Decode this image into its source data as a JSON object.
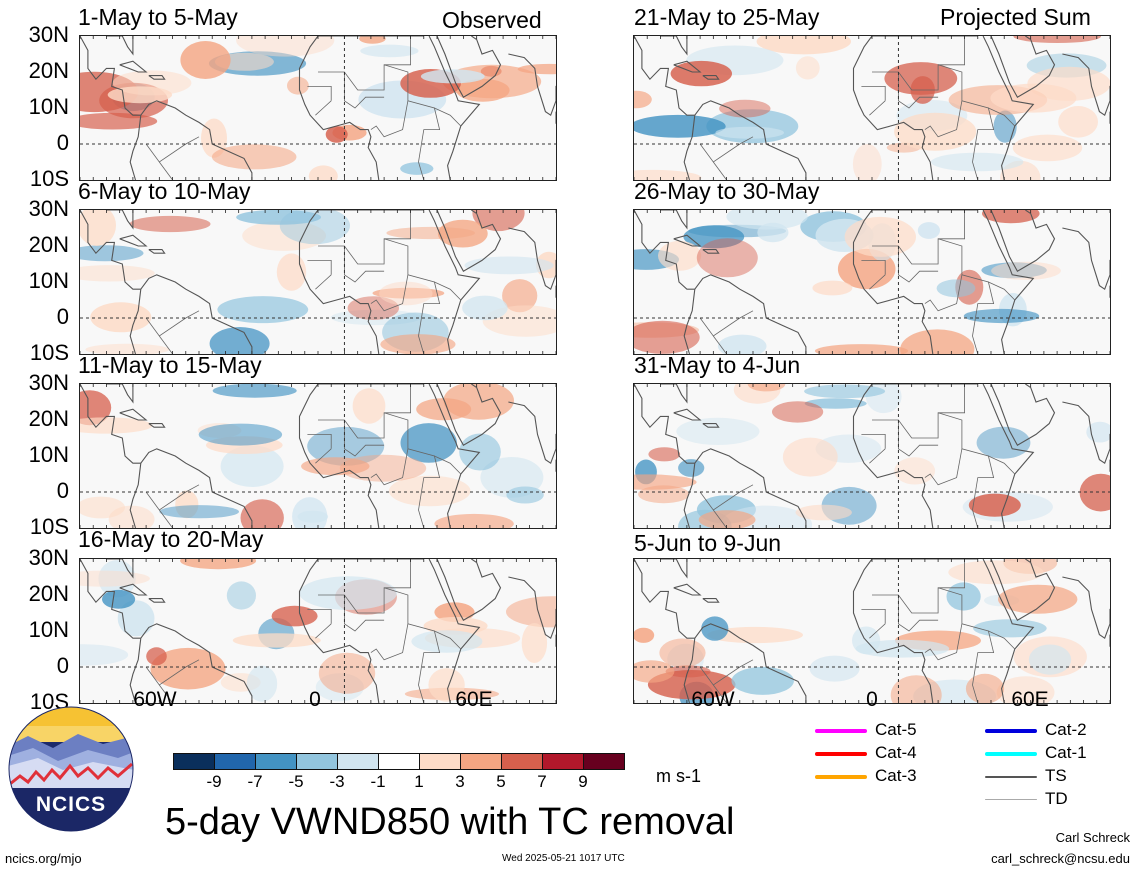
{
  "header": {
    "observed_label": "Observed",
    "projected_label": "Projected Sum"
  },
  "panels_left": [
    {
      "date": "1-May to 5-May"
    },
    {
      "date": "6-May to 10-May"
    },
    {
      "date": "11-May to 15-May"
    },
    {
      "date": "16-May to 20-May"
    }
  ],
  "panels_right": [
    {
      "date": "21-May to 25-May"
    },
    {
      "date": "26-May to 30-May"
    },
    {
      "date": "31-May to 4-Jun"
    },
    {
      "date": "5-Jun to 9-Jun"
    }
  ],
  "lat_labels": [
    "30N",
    "20N",
    "10N",
    "0",
    "10S"
  ],
  "lon_labels": [
    "60W",
    "0",
    "60E"
  ],
  "colorbar": {
    "labels": [
      "-9",
      "-7",
      "-5",
      "-3",
      "-1",
      "1",
      "3",
      "5",
      "7",
      "9"
    ],
    "colors": [
      "#0a2f5c",
      "#2166ac",
      "#4393c3",
      "#92c5de",
      "#d1e5f0",
      "#ffffff",
      "#fddbc7",
      "#f4a582",
      "#d6604d",
      "#b2182b",
      "#67001f"
    ],
    "units": "m s-1"
  },
  "tc_legend": [
    {
      "label": "Cat-5",
      "color": "#ff00ff"
    },
    {
      "label": "Cat-4",
      "color": "#ff0000"
    },
    {
      "label": "Cat-3",
      "color": "#ffa500"
    },
    {
      "label": "Cat-2",
      "color": "#0000dd"
    },
    {
      "label": "Cat-1",
      "color": "#00ffff"
    },
    {
      "label": "TS",
      "color": "#555555"
    },
    {
      "label": "TD",
      "color": "#aaaaaa"
    }
  ],
  "footer": {
    "main_title": "5-day VWND850 with TC removal",
    "logo_text": "NCICS",
    "site": "ncics.org/mjo",
    "timestamp": "Wed 2025-05-21 1017 UTC",
    "author": "Carl Schreck",
    "email": "carl_schreck@ncsu.edu"
  }
}
